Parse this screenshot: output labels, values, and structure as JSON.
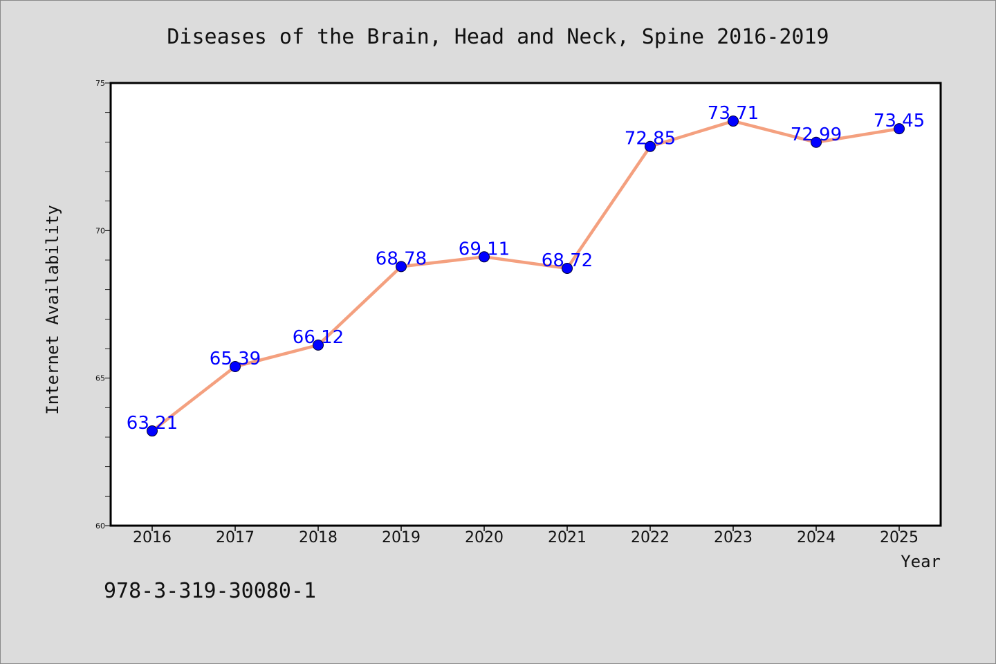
{
  "chart_data": {
    "type": "line",
    "title": "Diseases of the Brain, Head and Neck, Spine 2016-2019",
    "xlabel": "Year",
    "ylabel": "Internet Availability",
    "x": [
      "2016",
      "2017",
      "2018",
      "2019",
      "2020",
      "2021",
      "2022",
      "2023",
      "2024",
      "2025"
    ],
    "series": [
      {
        "values": [
          63.21,
          65.39,
          66.12,
          68.78,
          69.11,
          68.72,
          72.85,
          73.71,
          72.99,
          73.45
        ],
        "line_color": "#f4a07f",
        "marker_color": "#0000ff"
      }
    ],
    "data_labels": [
      "63.21",
      "65.39",
      "66.12",
      "68.78",
      "69.11",
      "68.72",
      "72.85",
      "73.71",
      "72.99",
      "73.45"
    ],
    "ylim": [
      60,
      75
    ],
    "yticks": [
      "60",
      "65",
      "70",
      "75"
    ],
    "grid": false,
    "legend": "none",
    "footnote": "978-3-319-30080-1"
  },
  "colors": {
    "background": "#dcdcdc",
    "plot_background": "#ffffff",
    "line": "#f4a07f",
    "marker": "#0000ff",
    "data_label": "#0000ff"
  }
}
